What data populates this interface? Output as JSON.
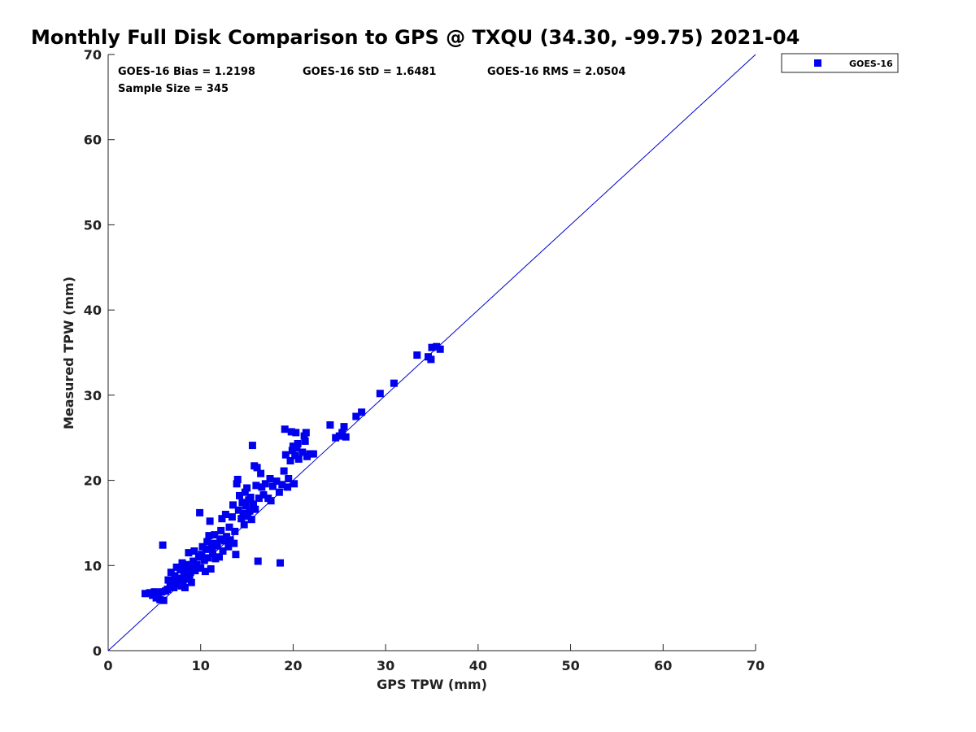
{
  "chart_data": {
    "type": "scatter",
    "title": "Monthly Full Disk Comparison to GPS @ TXQU (34.30, -99.75) 2021-04",
    "xlabel": "GPS TPW (mm)",
    "ylabel": "Measured TPW (mm)",
    "xlim": [
      0,
      70
    ],
    "ylim": [
      0,
      70
    ],
    "xticks": [
      "0",
      "10",
      "20",
      "30",
      "40",
      "50",
      "60",
      "70"
    ],
    "yticks": [
      "0",
      "10",
      "20",
      "30",
      "40",
      "50",
      "60",
      "70"
    ],
    "grid": false,
    "legend_position": "outside-top-right",
    "reference_line": "one-to-one",
    "colors": {
      "marker": "#0000ee",
      "line": "#0000cc",
      "axis": "#222222"
    },
    "stats": {
      "bias": "GOES-16 Bias = 1.2198",
      "std": "GOES-16 StD = 1.6481",
      "rms": "GOES-16 RMS = 2.0504",
      "sample": "Sample Size = 345"
    },
    "series": [
      {
        "name": "GOES-16",
        "marker": "square",
        "points": [
          [
            4.0,
            6.7
          ],
          [
            4.5,
            6.8
          ],
          [
            4.8,
            6.5
          ],
          [
            5.0,
            6.9
          ],
          [
            5.2,
            6.2
          ],
          [
            5.4,
            6.6
          ],
          [
            5.6,
            6.0
          ],
          [
            5.8,
            6.9
          ],
          [
            6.0,
            5.9
          ],
          [
            6.2,
            7.0
          ],
          [
            5.9,
            12.4
          ],
          [
            6.4,
            7.2
          ],
          [
            6.5,
            8.3
          ],
          [
            6.7,
            7.6
          ],
          [
            6.8,
            9.2
          ],
          [
            7.0,
            8.0
          ],
          [
            7.1,
            7.4
          ],
          [
            7.2,
            8.8
          ],
          [
            7.4,
            9.8
          ],
          [
            7.5,
            7.8
          ],
          [
            7.6,
            8.5
          ],
          [
            7.8,
            9.5
          ],
          [
            7.9,
            7.6
          ],
          [
            8.0,
            10.3
          ],
          [
            8.1,
            8.1
          ],
          [
            8.2,
            9.0
          ],
          [
            8.3,
            7.4
          ],
          [
            8.4,
            8.7
          ],
          [
            8.5,
            9.6
          ],
          [
            8.6,
            10.1
          ],
          [
            8.7,
            11.5
          ],
          [
            8.8,
            8.4
          ],
          [
            8.9,
            9.2
          ],
          [
            9.0,
            8.0
          ],
          [
            9.1,
            9.9
          ],
          [
            9.2,
            10.5
          ],
          [
            9.3,
            11.7
          ],
          [
            9.4,
            9.4
          ],
          [
            9.6,
            10.1
          ],
          [
            9.8,
            11.0
          ],
          [
            9.9,
            16.2
          ],
          [
            10.0,
            9.7
          ],
          [
            10.1,
            11.3
          ],
          [
            10.2,
            12.2
          ],
          [
            10.4,
            10.6
          ],
          [
            10.5,
            9.3
          ],
          [
            10.6,
            11.9
          ],
          [
            10.7,
            12.8
          ],
          [
            10.8,
            10.9
          ],
          [
            10.9,
            13.5
          ],
          [
            11.0,
            15.2
          ],
          [
            11.1,
            9.6
          ],
          [
            11.2,
            12.0
          ],
          [
            11.3,
            11.4
          ],
          [
            11.4,
            12.6
          ],
          [
            11.5,
            13.6
          ],
          [
            11.6,
            10.8
          ],
          [
            11.8,
            12.3
          ],
          [
            12.0,
            11.0
          ],
          [
            12.1,
            13.1
          ],
          [
            12.2,
            14.1
          ],
          [
            12.3,
            15.5
          ],
          [
            12.4,
            11.7
          ],
          [
            12.6,
            12.9
          ],
          [
            12.7,
            16.0
          ],
          [
            12.8,
            13.4
          ],
          [
            13.0,
            12.2
          ],
          [
            13.1,
            14.5
          ],
          [
            13.2,
            13.0
          ],
          [
            13.4,
            15.7
          ],
          [
            13.5,
            17.1
          ],
          [
            13.6,
            12.6
          ],
          [
            13.7,
            14.0
          ],
          [
            13.8,
            11.3
          ],
          [
            13.9,
            19.6
          ],
          [
            14.0,
            20.1
          ],
          [
            14.1,
            16.5
          ],
          [
            14.2,
            18.2
          ],
          [
            14.4,
            15.5
          ],
          [
            14.5,
            17.4
          ],
          [
            14.6,
            16.1
          ],
          [
            14.7,
            14.8
          ],
          [
            14.8,
            18.6
          ],
          [
            14.9,
            17.0
          ],
          [
            15.0,
            19.1
          ],
          [
            15.1,
            15.8
          ],
          [
            15.2,
            17.7
          ],
          [
            15.3,
            16.4
          ],
          [
            15.4,
            18.0
          ],
          [
            15.5,
            15.4
          ],
          [
            15.6,
            24.1
          ],
          [
            15.7,
            17.2
          ],
          [
            15.8,
            21.7
          ],
          [
            15.9,
            16.6
          ],
          [
            16.0,
            19.4
          ],
          [
            16.1,
            21.5
          ],
          [
            16.2,
            10.5
          ],
          [
            16.3,
            17.9
          ],
          [
            16.5,
            20.8
          ],
          [
            16.6,
            19.2
          ],
          [
            16.8,
            18.3
          ],
          [
            17.0,
            19.6
          ],
          [
            17.3,
            17.9
          ],
          [
            17.5,
            20.2
          ],
          [
            17.6,
            17.6
          ],
          [
            17.8,
            19.3
          ],
          [
            18.2,
            19.9
          ],
          [
            18.5,
            18.6
          ],
          [
            18.6,
            10.3
          ],
          [
            18.8,
            19.5
          ],
          [
            19.0,
            21.1
          ],
          [
            19.1,
            26.0
          ],
          [
            19.2,
            23.0
          ],
          [
            19.4,
            19.2
          ],
          [
            19.5,
            20.2
          ],
          [
            19.7,
            22.3
          ],
          [
            19.8,
            25.7
          ],
          [
            19.9,
            23.5
          ],
          [
            20.0,
            24.0
          ],
          [
            20.1,
            19.6
          ],
          [
            20.2,
            22.9
          ],
          [
            20.3,
            25.6
          ],
          [
            20.4,
            23.8
          ],
          [
            20.5,
            24.3
          ],
          [
            20.6,
            22.5
          ],
          [
            21.0,
            23.3
          ],
          [
            21.2,
            25.2
          ],
          [
            21.3,
            24.6
          ],
          [
            21.4,
            25.6
          ],
          [
            21.5,
            22.8
          ],
          [
            21.8,
            23.1
          ],
          [
            22.2,
            23.1
          ],
          [
            24.0,
            26.5
          ],
          [
            24.6,
            25.0
          ],
          [
            25.0,
            25.2
          ],
          [
            25.3,
            25.6
          ],
          [
            25.5,
            26.3
          ],
          [
            25.7,
            25.1
          ],
          [
            26.8,
            27.5
          ],
          [
            27.4,
            28.0
          ],
          [
            29.4,
            30.2
          ],
          [
            30.9,
            31.4
          ],
          [
            33.4,
            34.7
          ],
          [
            34.6,
            34.5
          ],
          [
            34.9,
            34.2
          ],
          [
            35.0,
            35.6
          ],
          [
            35.5,
            35.7
          ],
          [
            35.9,
            35.4
          ]
        ]
      }
    ]
  }
}
